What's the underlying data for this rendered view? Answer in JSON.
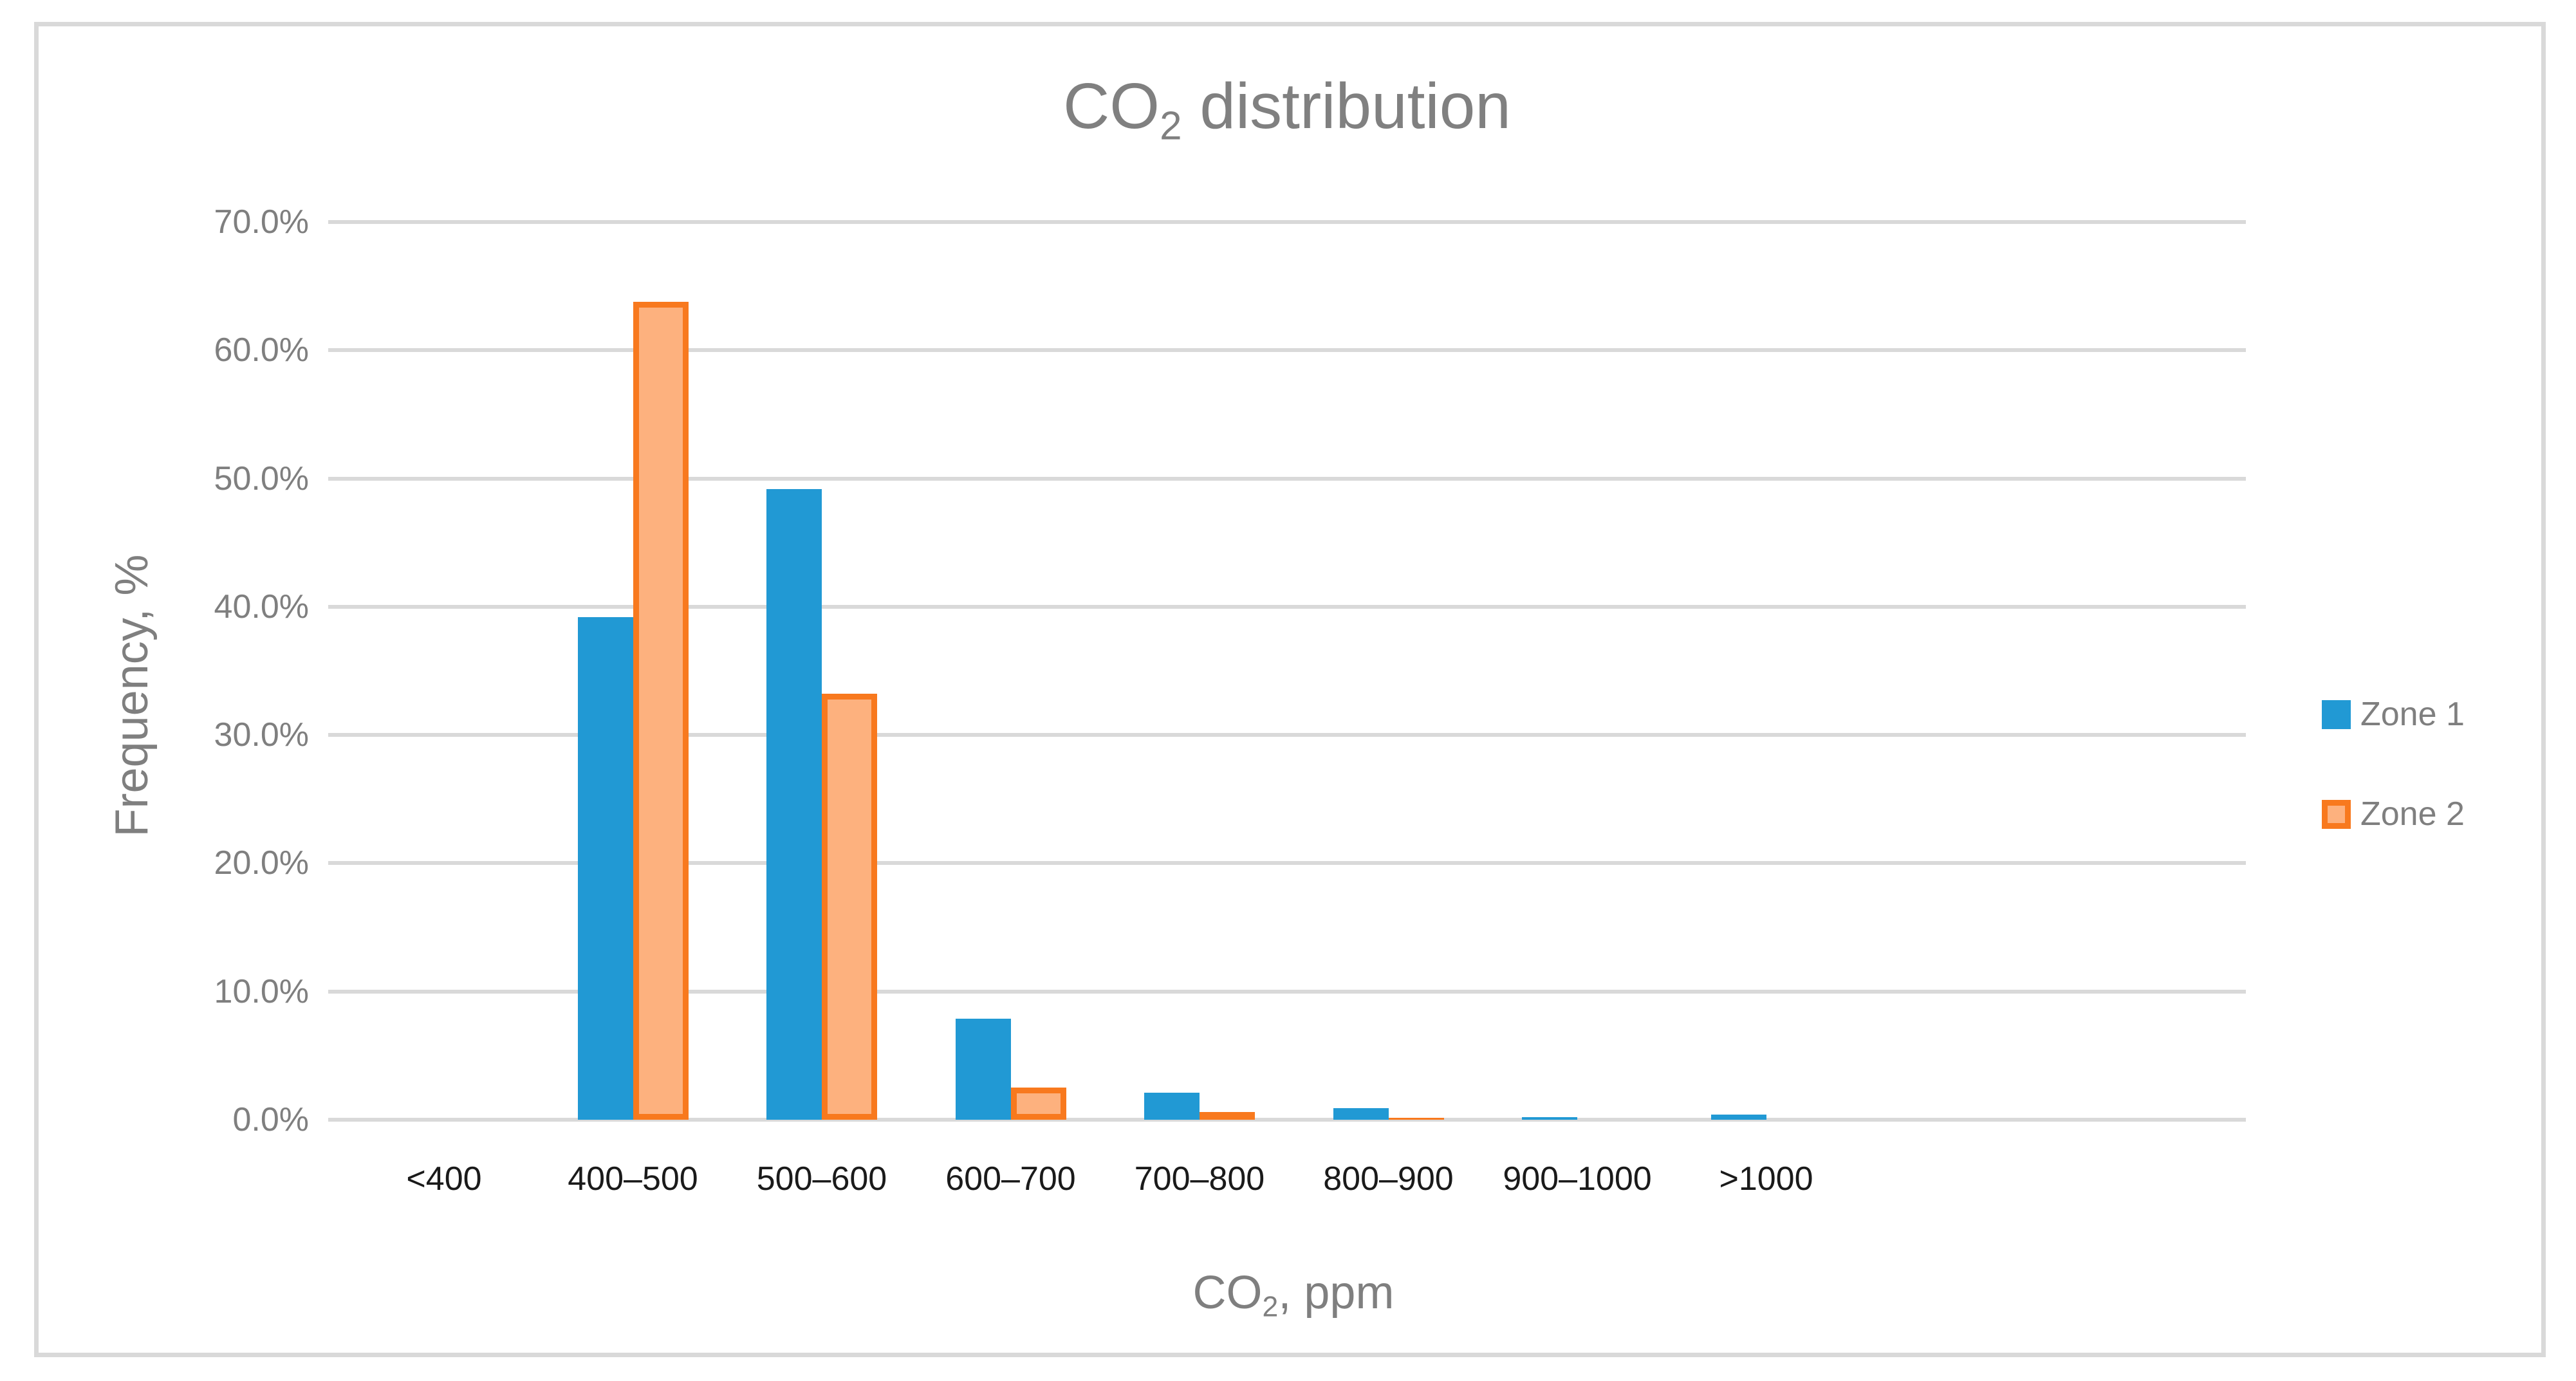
{
  "chart_data": {
    "type": "bar",
    "title": "CO2 distribution",
    "title_parts": {
      "prefix": "CO",
      "sub": "2",
      "suffix": " distribution"
    },
    "xlabel": "CO2, ppm",
    "xlabel_parts": {
      "prefix": "CO",
      "sub": "2",
      "suffix": ", ppm"
    },
    "ylabel": "Frequency, %",
    "ylim": [
      0,
      70
    ],
    "ytick_step": 10,
    "grid": "horizontal",
    "legend_position": "right",
    "categories": [
      "<400",
      "400–500",
      "500–600",
      "600–700",
      "700–800",
      "800–900",
      "900–1000",
      ">1000"
    ],
    "y_tick_labels": [
      "0.0%",
      "10.0%",
      "20.0%",
      "30.0%",
      "40.0%",
      "50.0%",
      "60.0%",
      "70.0%"
    ],
    "series": [
      {
        "name": "Zone 1",
        "style": "solid",
        "fill": "#2199D4",
        "border": "#2199D4",
        "values": [
          0,
          39.2,
          49.2,
          7.9,
          2.1,
          0.9,
          0.2,
          0.4
        ]
      },
      {
        "name": "Zone 2",
        "style": "outlined",
        "fill": "#FDB17E",
        "border": "#F8791E",
        "values": [
          0,
          63.8,
          33.2,
          2.5,
          0.6,
          0.15,
          0,
          0
        ]
      }
    ],
    "colors": {
      "gridline": "#D9D9D9",
      "frame_border": "#D9D9D9",
      "axis_text": "#7F7F7F",
      "category_text": "#1a1a1a",
      "title_text": "#808080"
    }
  },
  "legend": {
    "items": [
      {
        "label": "Zone 1"
      },
      {
        "label": "Zone 2"
      }
    ]
  }
}
